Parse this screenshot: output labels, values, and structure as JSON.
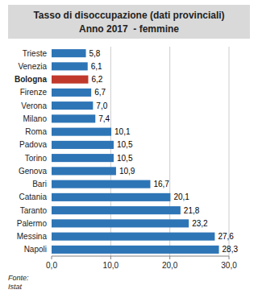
{
  "chart_data": {
    "type": "bar",
    "orientation": "horizontal",
    "title": "Tasso di disoccupazione (dati provinciali)",
    "subtitle": "Anno 2017  - femmine",
    "categories": [
      "Trieste",
      "Venezia",
      "Bologna",
      "Firenze",
      "Verona",
      "Milano",
      "Roma",
      "Padova",
      "Torino",
      "Genova",
      "Bari",
      "Catania",
      "Taranto",
      "Palermo",
      "Messina",
      "Napoli"
    ],
    "values": [
      5.8,
      6.1,
      6.2,
      6.7,
      7.0,
      7.4,
      10.1,
      10.5,
      10.5,
      10.9,
      16.7,
      20.1,
      21.8,
      23.2,
      27.6,
      28.3
    ],
    "value_labels": [
      "5,8",
      "6,1",
      "6,2",
      "6,7",
      "7,0",
      "7,4",
      "10,1",
      "10,5",
      "10,5",
      "10,9",
      "16,7",
      "20,1",
      "21,8",
      "23,2",
      "27,6",
      "28,3"
    ],
    "colors": [
      "#2e75b6",
      "#2e75b6",
      "#c0392b",
      "#2e75b6",
      "#2e75b6",
      "#2e75b6",
      "#2e75b6",
      "#2e75b6",
      "#2e75b6",
      "#2e75b6",
      "#2e75b6",
      "#2e75b6",
      "#2e75b6",
      "#2e75b6",
      "#2e75b6",
      "#2e75b6"
    ],
    "data_labels": true,
    "xlim": [
      0,
      30
    ],
    "xticks": [
      {
        "value": 0,
        "label": "0,0"
      },
      {
        "value": 10,
        "label": "10,0"
      },
      {
        "value": 20,
        "label": "20,0"
      },
      {
        "value": 30,
        "label": "30,0"
      }
    ],
    "grid": true,
    "annotations": [
      "Fonte:\nIstat"
    ]
  }
}
